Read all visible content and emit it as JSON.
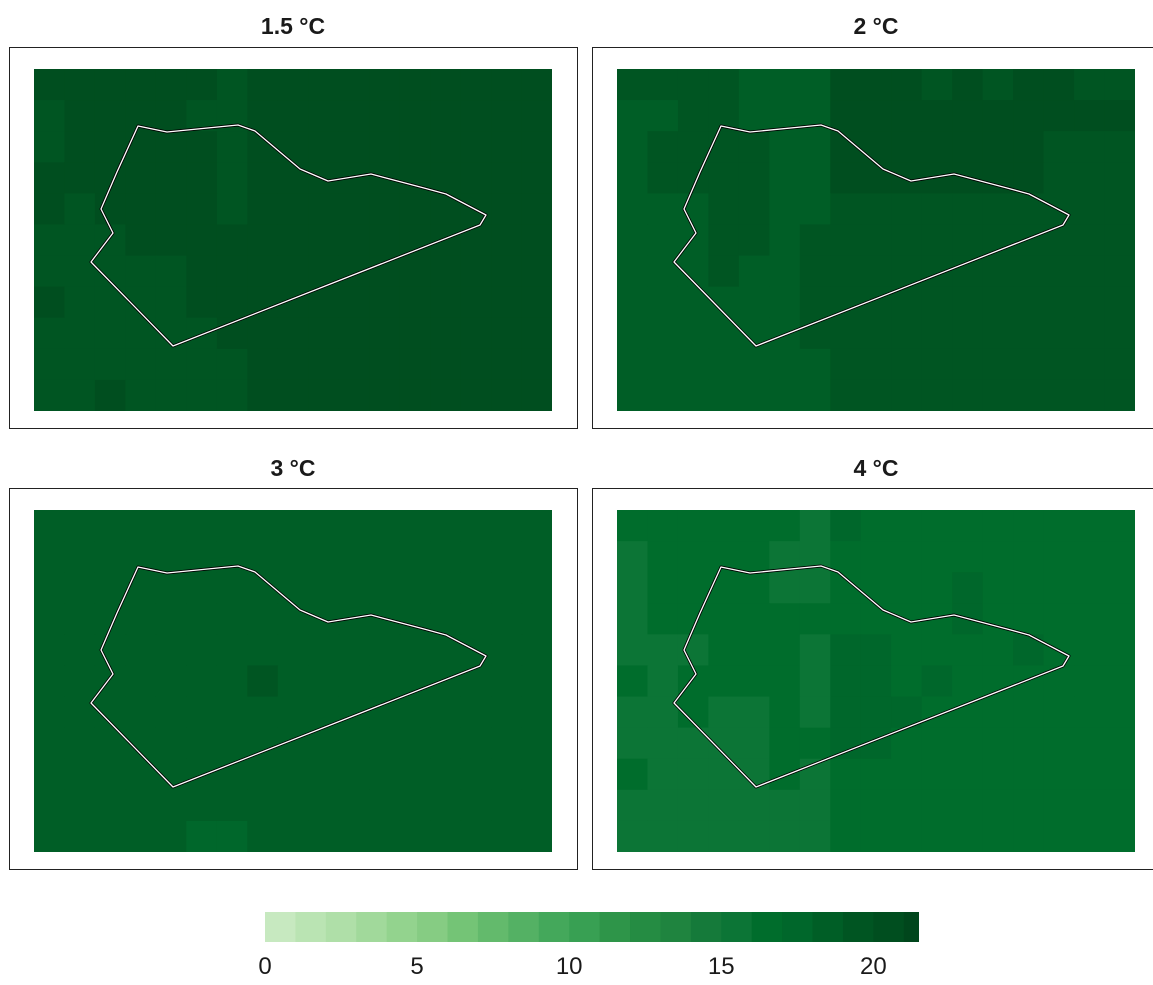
{
  "chart_data": {
    "type": "heatmap",
    "panels": [
      {
        "title": "1.5 °C",
        "grid": [
          [
            20,
            20,
            20,
            20,
            20,
            20,
            19,
            20,
            20,
            20,
            20,
            20,
            20,
            20,
            20,
            20,
            20
          ],
          [
            19,
            20,
            20,
            20,
            20,
            19,
            19,
            20,
            20,
            20,
            20,
            20,
            20,
            20,
            20,
            20,
            20
          ],
          [
            19,
            20,
            20,
            20,
            20,
            20,
            19,
            20,
            20,
            20,
            20,
            20,
            20,
            20,
            20,
            20,
            20
          ],
          [
            20,
            20,
            20,
            20,
            20,
            20,
            19,
            20,
            20,
            20,
            20,
            20,
            20,
            20,
            20,
            20,
            20
          ],
          [
            20,
            19,
            20,
            20,
            20,
            20,
            19,
            20,
            20,
            20,
            20,
            20,
            20,
            20,
            20,
            20,
            20
          ],
          [
            19,
            19,
            19,
            20,
            20,
            20,
            20,
            20,
            20,
            20,
            20,
            20,
            20,
            20,
            20,
            20,
            20
          ],
          [
            19,
            19,
            19,
            19,
            19,
            20,
            20,
            20,
            20,
            20,
            20,
            20,
            20,
            20,
            20,
            20,
            20
          ],
          [
            20,
            19,
            19,
            19,
            19,
            20,
            20,
            20,
            20,
            20,
            20,
            20,
            20,
            20,
            20,
            20,
            20
          ],
          [
            19,
            19,
            19,
            19,
            19,
            19,
            20,
            20,
            20,
            20,
            20,
            20,
            20,
            20,
            20,
            20,
            20
          ],
          [
            19,
            19,
            19,
            19,
            19,
            19,
            19,
            20,
            20,
            20,
            20,
            20,
            20,
            20,
            20,
            20,
            20
          ],
          [
            19,
            19,
            20,
            19,
            19,
            19,
            19,
            20,
            20,
            20,
            20,
            20,
            20,
            20,
            20,
            20,
            20
          ]
        ]
      },
      {
        "title": "2 °C",
        "grid": [
          [
            19,
            19,
            19,
            19,
            18,
            18,
            18,
            20,
            20,
            20,
            19,
            20,
            19,
            20,
            20,
            19,
            19
          ],
          [
            18,
            18,
            19,
            19,
            18,
            18,
            18,
            20,
            20,
            20,
            20,
            20,
            20,
            20,
            20,
            20,
            20
          ],
          [
            18,
            19,
            19,
            19,
            19,
            18,
            18,
            20,
            20,
            20,
            20,
            20,
            20,
            20,
            19,
            19,
            19
          ],
          [
            18,
            19,
            19,
            19,
            19,
            18,
            18,
            20,
            20,
            20,
            20,
            20,
            20,
            20,
            19,
            19,
            19
          ],
          [
            18,
            18,
            18,
            19,
            19,
            18,
            18,
            19,
            19,
            19,
            19,
            19,
            19,
            19,
            19,
            19,
            19
          ],
          [
            18,
            18,
            18,
            19,
            19,
            18,
            19,
            19,
            19,
            19,
            19,
            19,
            19,
            19,
            19,
            19,
            19
          ],
          [
            18,
            18,
            18,
            19,
            18,
            18,
            19,
            19,
            19,
            19,
            19,
            19,
            19,
            19,
            19,
            19,
            19
          ],
          [
            18,
            18,
            18,
            18,
            18,
            18,
            19,
            19,
            19,
            19,
            19,
            19,
            19,
            19,
            19,
            19,
            19
          ],
          [
            18,
            18,
            18,
            18,
            18,
            18,
            19,
            19,
            19,
            19,
            19,
            19,
            19,
            19,
            19,
            19,
            19
          ],
          [
            18,
            18,
            18,
            18,
            18,
            18,
            18,
            19,
            19,
            19,
            19,
            19,
            19,
            19,
            19,
            19,
            19
          ],
          [
            18,
            18,
            18,
            18,
            18,
            18,
            18,
            19,
            19,
            19,
            19,
            19,
            19,
            19,
            19,
            19,
            19
          ]
        ]
      },
      {
        "title": "3 °C",
        "grid": [
          [
            18,
            18,
            18,
            18,
            18,
            18,
            18,
            18,
            18,
            18,
            18,
            18,
            18,
            18,
            18,
            18,
            18
          ],
          [
            18,
            18,
            18,
            18,
            18,
            18,
            18,
            18,
            18,
            18,
            18,
            18,
            18,
            18,
            18,
            18,
            18
          ],
          [
            18,
            18,
            18,
            18,
            18,
            18,
            18,
            18,
            18,
            18,
            18,
            18,
            18,
            18,
            18,
            18,
            18
          ],
          [
            18,
            18,
            18,
            18,
            18,
            18,
            18,
            18,
            18,
            18,
            18,
            18,
            18,
            18,
            18,
            18,
            18
          ],
          [
            18,
            18,
            18,
            18,
            18,
            18,
            18,
            18,
            18,
            18,
            18,
            18,
            18,
            18,
            18,
            18,
            18
          ],
          [
            18,
            18,
            18,
            18,
            18,
            18,
            18,
            19,
            18,
            18,
            18,
            18,
            18,
            18,
            18,
            18,
            18
          ],
          [
            18,
            18,
            18,
            18,
            18,
            18,
            18,
            18,
            18,
            18,
            18,
            18,
            18,
            18,
            18,
            18,
            18
          ],
          [
            18,
            18,
            18,
            18,
            18,
            18,
            18,
            18,
            18,
            18,
            18,
            18,
            18,
            18,
            18,
            18,
            18
          ],
          [
            18,
            18,
            18,
            18,
            18,
            18,
            18,
            18,
            18,
            18,
            18,
            18,
            18,
            18,
            18,
            18,
            18
          ],
          [
            18,
            18,
            18,
            18,
            18,
            18,
            18,
            18,
            18,
            18,
            18,
            18,
            18,
            18,
            18,
            18,
            18
          ],
          [
            18,
            18,
            18,
            18,
            18,
            17,
            17,
            18,
            18,
            18,
            18,
            18,
            18,
            18,
            18,
            18,
            18
          ]
        ]
      },
      {
        "title": "4 °C",
        "grid": [
          [
            16,
            16,
            16,
            16,
            16,
            16,
            15,
            17,
            16,
            16,
            16,
            16,
            16,
            16,
            16,
            16,
            16
          ],
          [
            15,
            16,
            16,
            16,
            16,
            15,
            15,
            16,
            16,
            16,
            16,
            16,
            16,
            16,
            16,
            16,
            16
          ],
          [
            15,
            16,
            16,
            16,
            16,
            15,
            15,
            16,
            16,
            16,
            16,
            17,
            16,
            16,
            16,
            16,
            16
          ],
          [
            15,
            16,
            16,
            16,
            16,
            16,
            16,
            16,
            16,
            16,
            16,
            17,
            16,
            16,
            16,
            16,
            16
          ],
          [
            15,
            15,
            15,
            16,
            16,
            16,
            15,
            17,
            17,
            16,
            16,
            16,
            16,
            17,
            16,
            16,
            16
          ],
          [
            16,
            15,
            16,
            16,
            16,
            16,
            15,
            17,
            17,
            16,
            17,
            16,
            16,
            16,
            16,
            16,
            16
          ],
          [
            15,
            15,
            16,
            15,
            15,
            16,
            15,
            17,
            17,
            17,
            16,
            16,
            16,
            16,
            16,
            16,
            16
          ],
          [
            15,
            15,
            15,
            15,
            15,
            16,
            16,
            17,
            17,
            16,
            16,
            16,
            16,
            16,
            16,
            16,
            16
          ],
          [
            16,
            15,
            15,
            15,
            15,
            16,
            15,
            16,
            16,
            16,
            16,
            16,
            16,
            16,
            16,
            16,
            16
          ],
          [
            15,
            15,
            15,
            15,
            15,
            15,
            15,
            16,
            16,
            16,
            16,
            16,
            16,
            16,
            16,
            16,
            16
          ],
          [
            15,
            15,
            15,
            15,
            15,
            15,
            15,
            16,
            16,
            16,
            16,
            16,
            16,
            16,
            16,
            16,
            16
          ]
        ]
      }
    ],
    "colorbar": {
      "min": 0,
      "max": 21.5,
      "step": 1,
      "ticks": [
        0,
        5,
        10,
        15,
        20
      ],
      "tick_labels": [
        "0",
        "5",
        "10",
        "15",
        "20"
      ],
      "colors": [
        "#c7e9c0",
        "#bae4b3",
        "#afdfa8",
        "#a1d99b",
        "#93d38e",
        "#86cc83",
        "#74c476",
        "#63ba6c",
        "#54b164",
        "#44a85b",
        "#38a053",
        "#2e9549",
        "#258c43",
        "#1f843f",
        "#157a3a",
        "#0c7536",
        "#006d2c",
        "#00672b",
        "#005e26",
        "#005522",
        "#004e1f",
        "#00461c"
      ]
    },
    "outline_color": "#ffffff"
  }
}
